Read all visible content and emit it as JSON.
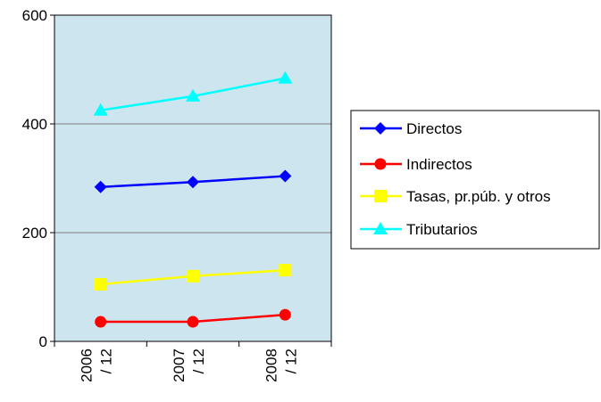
{
  "chart_data": {
    "type": "line",
    "x": [
      "2006 / 12",
      "2007 / 12",
      "2008 / 12"
    ],
    "x_tick_lines": [
      [
        "2006",
        "/ 12"
      ],
      [
        "2007",
        "/ 12"
      ],
      [
        "2008",
        "/ 12"
      ]
    ],
    "ylim": [
      0,
      600
    ],
    "y_ticks": [
      "0",
      "200",
      "400",
      "600"
    ],
    "grid": true,
    "legend_position": "right",
    "plot_background": "#CCE5EE",
    "series": [
      {
        "name": "Directos",
        "values": [
          284,
          293,
          304
        ],
        "color": "#0000FF",
        "marker": "diamond"
      },
      {
        "name": "Indirectos",
        "values": [
          36,
          36,
          49
        ],
        "color": "#FF0000",
        "marker": "circle"
      },
      {
        "name": "Tasas, pr.púb. y otros",
        "values": [
          105,
          120,
          131
        ],
        "color": "#FFFF00",
        "marker": "square"
      },
      {
        "name": "Tributarios",
        "values": [
          425,
          451,
          484
        ],
        "color": "#00FFFF",
        "marker": "triangle"
      }
    ]
  }
}
